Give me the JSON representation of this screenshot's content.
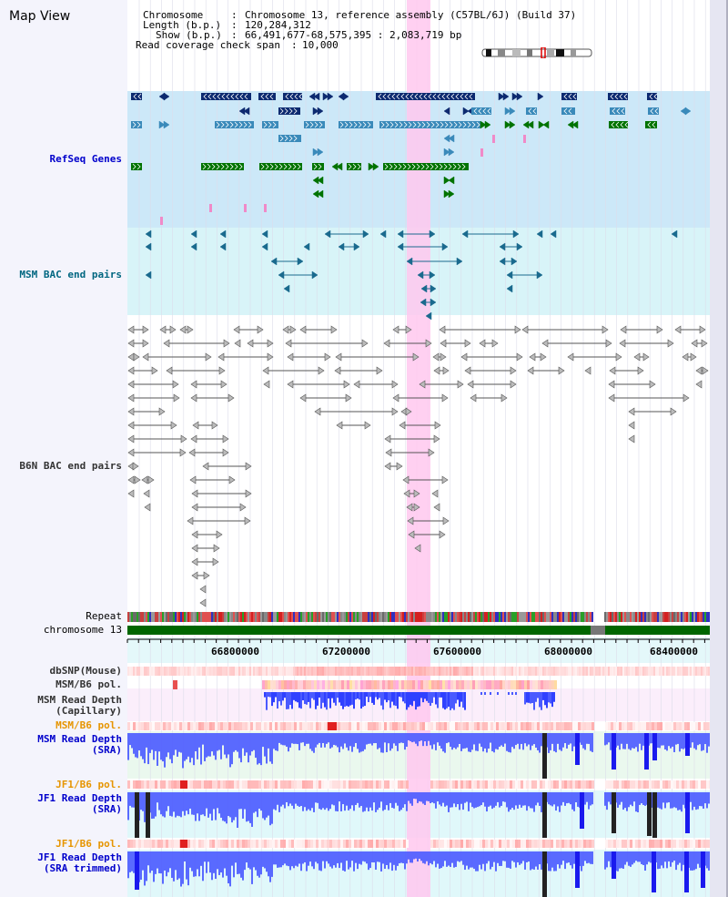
{
  "title": "Map View",
  "info": {
    "chromosome_key": "Chromosome",
    "chromosome_value": "Chromosome 13, reference assembly (C57BL/6J) (Build 37)",
    "length_key": "Length (b.p.)",
    "length_value": "120,284,312",
    "show_key": "Show (b.p.)",
    "show_value": "66,491,677-68,575,395 : 2,083,719 bp",
    "coverage_key": "Read coverage check span",
    "coverage_value": "10,000"
  },
  "tracks": {
    "refseq": "RefSeq Genes",
    "msm_bac": "MSM BAC end pairs",
    "b6n_bac": "B6N BAC end pairs",
    "repeat": "Repeat",
    "chromosome": "chromosome 13",
    "dbsnp": "dbSNP(Mouse)",
    "msm_b6_pol_1": "MSM/B6 pol.",
    "msm_read_depth_cap_1": "MSM Read Depth",
    "msm_read_depth_cap_2": "(Capillary)",
    "msm_b6_pol_2": "MSM/B6 pol.",
    "msm_read_depth_sra_1": "MSM Read Depth",
    "msm_read_depth_sra_2": "(SRA)",
    "jf1_b6_pol_1": "JF1/B6 pol.",
    "jf1_read_depth_sra_1": "JF1 Read Depth",
    "jf1_read_depth_sra_2": "(SRA)",
    "jf1_b6_pol_2": "JF1/B6 pol.",
    "jf1_read_depth_trim_1": "JF1 Read Depth",
    "jf1_read_depth_trim_2": "(SRA trimmed)"
  },
  "axis": {
    "ticks": [
      "66800000",
      "67200000",
      "67600000",
      "68000000",
      "68400000"
    ]
  },
  "colors": {
    "label_blue": "#0000cc",
    "label_teal": "#006680",
    "label_orange": "#e69500",
    "label_gray": "#333333",
    "highlight": "#ffc8ee",
    "refseq_bg": "#cce8f8",
    "msm_bg": "#d8f4f8",
    "gene_navy": "#0d2a70",
    "gene_steel": "#3a8aba",
    "gene_green": "#007300",
    "chromosome_green": "#006600",
    "depth_blue": "#4a5aff"
  }
}
